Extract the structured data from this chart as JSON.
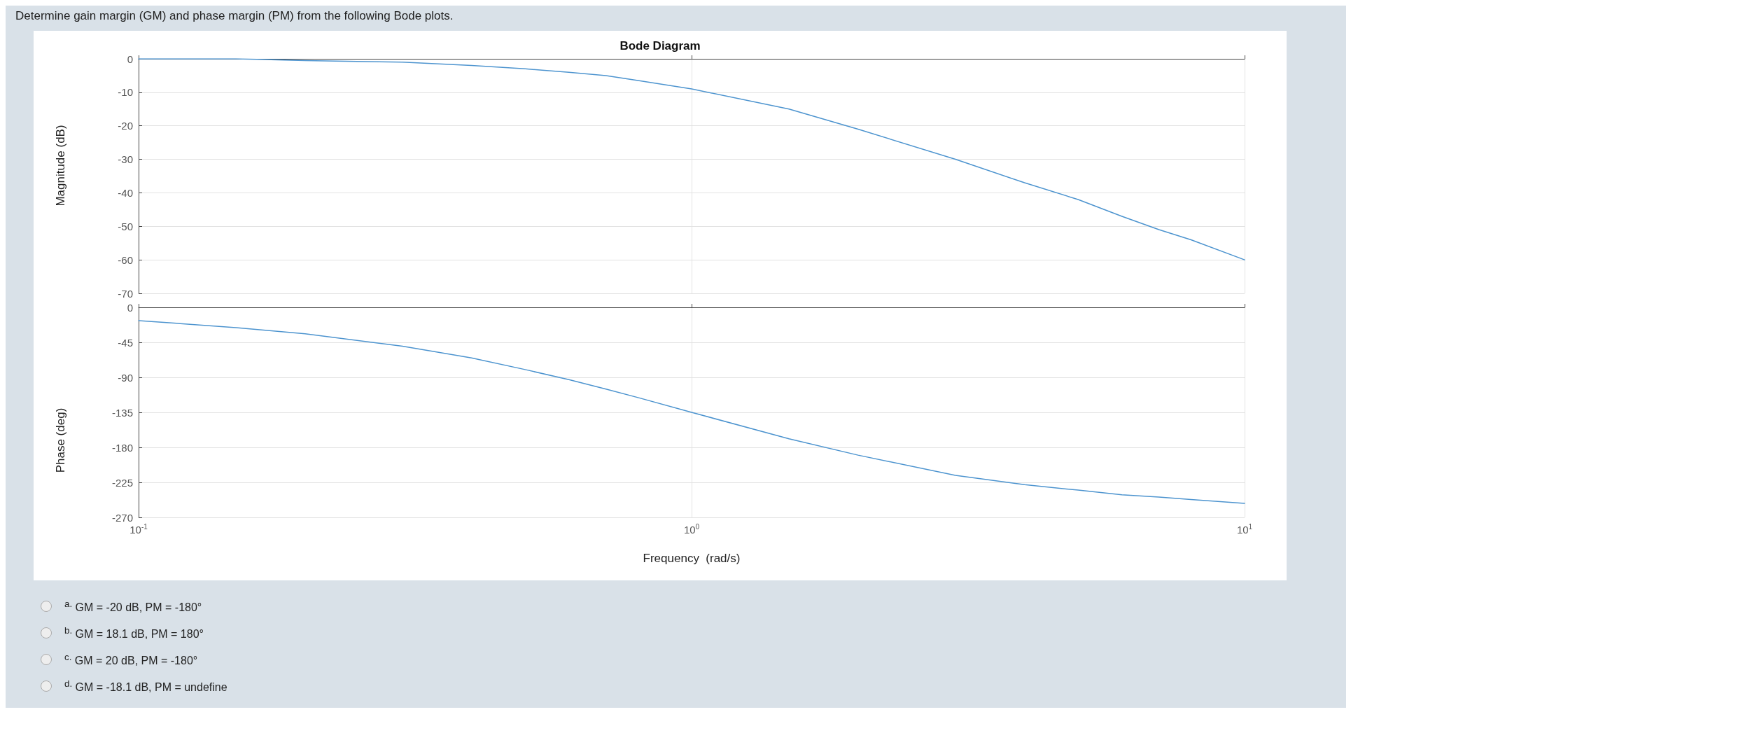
{
  "chart_data": [
    {
      "type": "line",
      "title": "Bode Diagram",
      "ylabel": "Magnitude (dB)",
      "annotations": [
        "Determine gain margin (GM) and phase margin (PM) from the following Bode plots."
      ],
      "log": "x",
      "xlim": [
        0.1,
        10
      ],
      "xticks": [
        {
          "value": 0.1,
          "label": null
        },
        {
          "value": 1,
          "label": null
        },
        {
          "value": 10,
          "label": null
        }
      ],
      "ylim": [
        -70,
        0
      ],
      "yticks": [
        -70,
        -60,
        -50,
        -40,
        -30,
        -20,
        -10,
        0
      ],
      "grid": true,
      "tick_labels": "y",
      "marker": "none",
      "line_style": "solid",
      "x": [
        0.1,
        0.15,
        0.2,
        0.3,
        0.4,
        0.5,
        0.6,
        0.7,
        0.8,
        1,
        1.5,
        2,
        3,
        4,
        5,
        6,
        7,
        8,
        10
      ],
      "series": [
        {
          "color": "#4d94cf",
          "values": [
            0,
            0,
            -0.5,
            -1,
            -2,
            -3,
            -4,
            -5,
            -6.5,
            -9,
            -15,
            -21,
            -30,
            -37,
            -42,
            -47,
            -51,
            -54,
            -60
          ]
        }
      ]
    },
    {
      "type": "line",
      "xlabel": "Frequency  (rad/s)",
      "ylabel": "Phase (deg)",
      "annotations": [
        "$^{a.}$ GM = -20 dB, PM = -180°",
        "$^{b.}$ GM = 18.1 dB, PM = 180°",
        "$^{c.}$ GM = 20 dB, PM = -180°",
        "$^{d.}$ GM = -18.1 dB, PM = undefine"
      ],
      "log": "x",
      "xlim": [
        0.1,
        10
      ],
      "xticks": [
        {
          "value": 0.1,
          "label": "10$^{-1}$"
        },
        {
          "value": 1,
          "label": "10$^{0}$"
        },
        {
          "value": 10,
          "label": "10$^{1}$"
        }
      ],
      "ylim": [
        -270,
        0
      ],
      "yticks": [
        -270,
        -225,
        -180,
        -135,
        -90,
        -45,
        0
      ],
      "grid": true,
      "marker": "none",
      "line_style": "solid",
      "x": [
        0.1,
        0.15,
        0.2,
        0.3,
        0.4,
        0.5,
        0.6,
        0.7,
        0.8,
        1,
        1.5,
        2,
        3,
        4,
        5,
        6,
        7,
        8,
        10
      ],
      "series": [
        {
          "color": "#4d94cf",
          "values": [
            -17,
            -26,
            -34,
            -50,
            -65,
            -80,
            -93,
            -105,
            -116,
            -135,
            -169,
            -190,
            -216,
            -228,
            -235,
            -241,
            -244,
            -247,
            -252
          ]
        }
      ]
    }
  ]
}
